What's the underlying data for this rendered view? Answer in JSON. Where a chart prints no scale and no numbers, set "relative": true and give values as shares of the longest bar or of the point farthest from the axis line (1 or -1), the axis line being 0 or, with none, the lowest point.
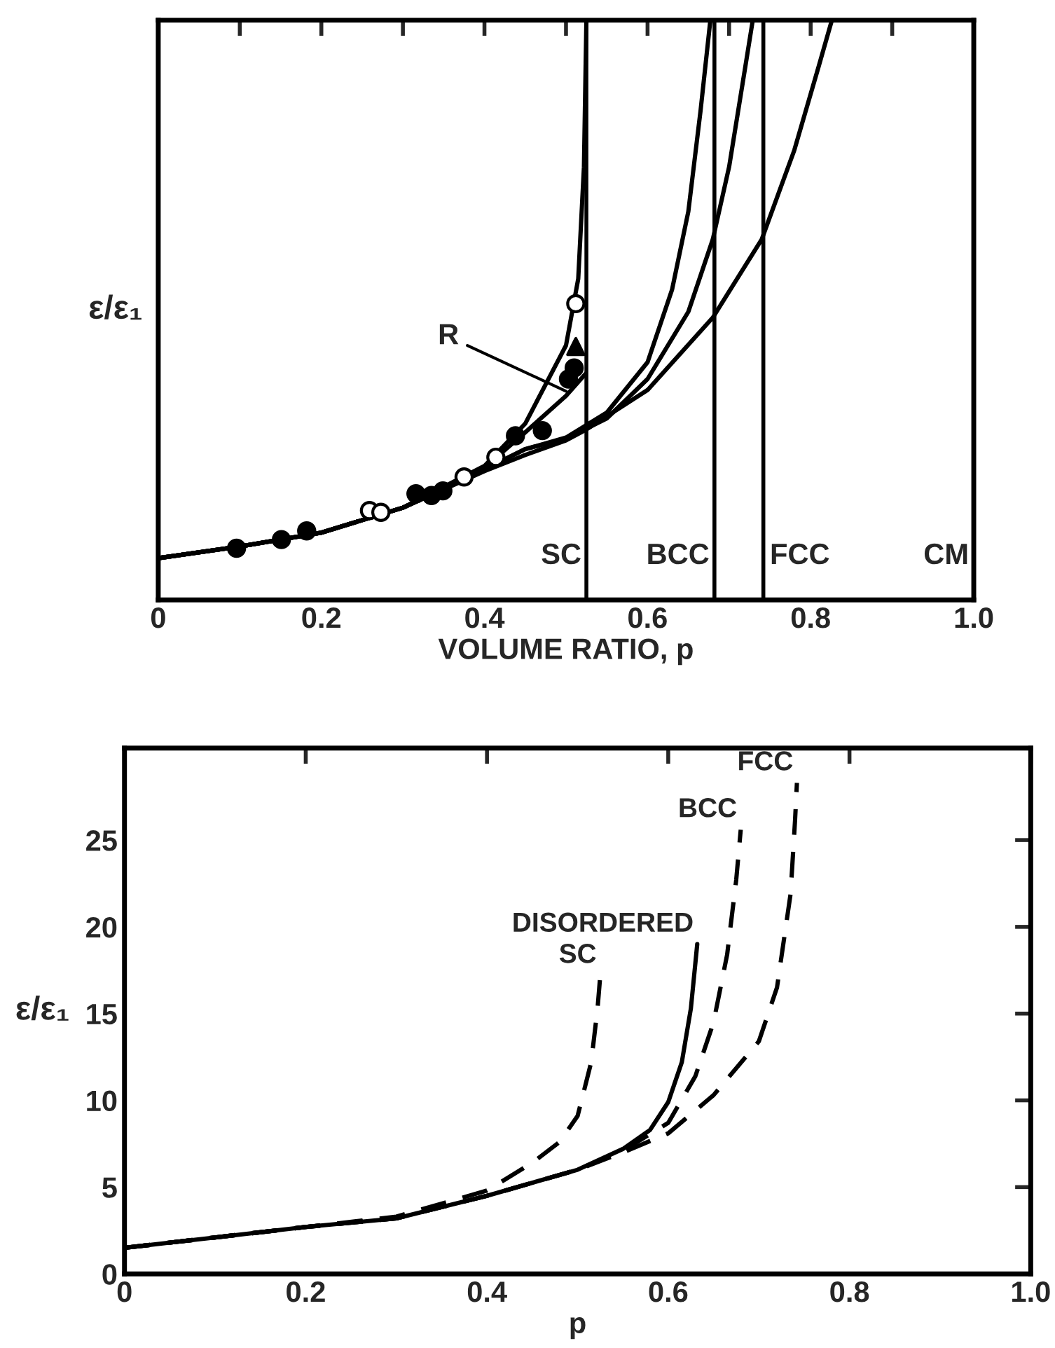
{
  "chart_data": [
    {
      "type": "line",
      "relative": true,
      "xlabel": "VOLUME RATIO, p",
      "ylabel": "ε/ε₁",
      "xlim": [
        0,
        1.0
      ],
      "xticks": [
        0,
        {
          "value": 0.1,
          "label": null
        },
        0.2,
        {
          "value": 0.3,
          "label": null
        },
        0.4,
        {
          "value": 0.5,
          "label": null
        },
        0.6,
        {
          "value": 0.7,
          "label": null
        },
        0.8,
        {
          "value": 0.9,
          "label": null
        },
        {
          "value": 1.0,
          "label": "1.0"
        }
      ],
      "grid": false,
      "tick_labels": "x",
      "series": [
        {
          "color": "#000000",
          "x": [
            0,
            0.1,
            0.2,
            0.3,
            0.4,
            0.45,
            0.5,
            0.515,
            0.522,
            0.525
          ],
          "values": [
            0.072,
            0.092,
            0.116,
            0.159,
            0.231,
            0.304,
            0.439,
            0.554,
            0.747,
            1.0
          ]
        },
        {
          "color": "#000000",
          "x": [
            0,
            0.1,
            0.2,
            0.3,
            0.4,
            0.45,
            0.5,
            0.524
          ],
          "values": [
            0.072,
            0.092,
            0.116,
            0.159,
            0.228,
            0.289,
            0.352,
            0.39
          ]
        },
        {
          "color": "#000000",
          "x": [
            0,
            0.1,
            0.2,
            0.3,
            0.4,
            0.45,
            0.5,
            0.55,
            0.6,
            0.63,
            0.65,
            0.665,
            0.677
          ],
          "values": [
            0.072,
            0.092,
            0.116,
            0.159,
            0.225,
            0.26,
            0.28,
            0.323,
            0.41,
            0.535,
            0.67,
            0.844,
            1.0
          ]
        },
        {
          "color": "#000000",
          "x": [
            0,
            0.1,
            0.2,
            0.3,
            0.4,
            0.45,
            0.5,
            0.55,
            0.6,
            0.65,
            0.68,
            0.7,
            0.72,
            0.729
          ],
          "values": [
            0.072,
            0.092,
            0.116,
            0.159,
            0.225,
            0.26,
            0.278,
            0.313,
            0.381,
            0.497,
            0.622,
            0.747,
            0.921,
            1.0
          ]
        },
        {
          "color": "#000000",
          "x": [
            0,
            0.1,
            0.2,
            0.3,
            0.4,
            0.45,
            0.5,
            0.525,
            0.6,
            0.68,
            0.74,
            0.78,
            0.81,
            0.826
          ],
          "values": [
            0.072,
            0.092,
            0.116,
            0.159,
            0.222,
            0.25,
            0.275,
            0.294,
            0.362,
            0.487,
            0.622,
            0.776,
            0.921,
            1.0
          ]
        },
        {
          "type": "scatter",
          "marker": "circle",
          "color": "#000000",
          "x": [
            0.096,
            0.151,
            0.182,
            0.316,
            0.335,
            0.349,
            0.438,
            0.471,
            0.503,
            0.51
          ],
          "values": [
            0.089,
            0.104,
            0.119,
            0.183,
            0.18,
            0.188,
            0.283,
            0.292,
            0.381,
            0.4
          ]
        },
        {
          "type": "scatter",
          "marker": "circle",
          "color": "#ffffff",
          "x": [
            0.259,
            0.273,
            0.375,
            0.414,
            0.512
          ],
          "values": [
            0.154,
            0.151,
            0.212,
            0.246,
            0.511
          ]
        },
        {
          "type": "scatter",
          "marker": "triangle",
          "color": "#000000",
          "x": [
            0.512
          ],
          "values": [
            0.437
          ]
        }
      ],
      "ref_lines": [
        {
          "axis": "x",
          "value": 0.525,
          "label": "SC"
        },
        {
          "axis": "x",
          "value": 0.682,
          "label": "BCC"
        },
        {
          "axis": "x",
          "value": 0.742,
          "label": "FCC"
        },
        {
          "axis": "x",
          "value": 1.0,
          "label": "CM"
        }
      ],
      "annotations": [
        {
          "text": "R",
          "x": 0.5,
          "y": 0.36
        }
      ]
    },
    {
      "type": "line",
      "xlabel": "p",
      "ylabel": "ε/ε₁",
      "xlim": [
        0,
        1.0
      ],
      "ylim": [
        0,
        30.3
      ],
      "xticks": [
        0,
        0.2,
        0.4,
        0.6,
        0.8,
        {
          "value": 1.0,
          "label": "1.0"
        }
      ],
      "yticks": [
        0,
        5,
        10,
        15,
        20,
        25
      ],
      "grid": false,
      "series": [
        {
          "name": "SC",
          "color": "#000000",
          "line_style": "dashed",
          "x": [
            0,
            0.1,
            0.2,
            0.3,
            0.4,
            0.45,
            0.48,
            0.5,
            0.515,
            0.522,
            0.525
          ],
          "values": [
            1.5,
            2.1,
            2.7,
            3.3,
            4.8,
            6.4,
            7.6,
            9.1,
            12.2,
            15.3,
            17.2
          ]
        },
        {
          "name": "DISORDERED",
          "color": "#000000",
          "line_style": "solid",
          "x": [
            0,
            0.1,
            0.2,
            0.3,
            0.4,
            0.5,
            0.55,
            0.58,
            0.6,
            0.615,
            0.625,
            0.632
          ],
          "values": [
            1.5,
            2.1,
            2.7,
            3.2,
            4.5,
            6.0,
            7.2,
            8.3,
            9.9,
            12.2,
            15.3,
            19.0
          ]
        },
        {
          "name": "BCC",
          "color": "#000000",
          "line_style": "dashed",
          "x": [
            0,
            0.1,
            0.2,
            0.3,
            0.4,
            0.5,
            0.55,
            0.6,
            0.63,
            0.65,
            0.665,
            0.675,
            0.68
          ],
          "values": [
            1.5,
            2.1,
            2.7,
            3.2,
            4.5,
            6.0,
            7.1,
            8.7,
            11.4,
            14.5,
            18.4,
            22.7,
            25.6
          ]
        },
        {
          "name": "FCC",
          "color": "#000000",
          "line_style": "dashed",
          "x": [
            0,
            0.1,
            0.2,
            0.3,
            0.4,
            0.5,
            0.55,
            0.6,
            0.65,
            0.7,
            0.72,
            0.735,
            0.74,
            0.742
          ],
          "values": [
            1.5,
            2.1,
            2.7,
            3.2,
            4.5,
            6.0,
            7.0,
            8.1,
            10.3,
            13.4,
            16.5,
            21.9,
            26.2,
            28.3
          ]
        }
      ]
    }
  ]
}
